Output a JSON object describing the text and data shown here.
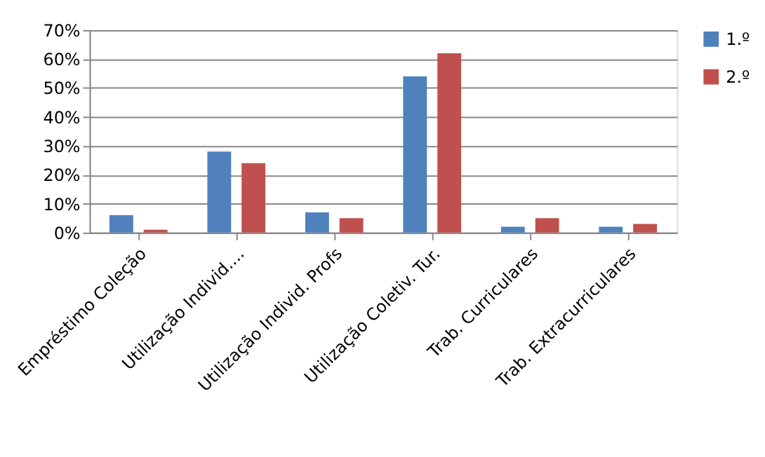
{
  "chart_data": {
    "type": "bar",
    "categories": [
      "Empréstimo Coleção",
      "Utilização Individ....",
      "Utilização Individ. Profs",
      "Utilização Coletiv. Tur.",
      "Trab. Curriculares",
      "Trab. Extracurriculares"
    ],
    "series": [
      {
        "name": "1.º",
        "color": "#4f81bd",
        "values": [
          6,
          28,
          7,
          54,
          2,
          2
        ]
      },
      {
        "name": "2.º",
        "color": "#c0504d",
        "values": [
          1,
          24,
          5,
          62,
          5,
          3
        ]
      }
    ],
    "ylim": [
      0,
      70
    ],
    "yticks": [
      {
        "value": 0,
        "label": "0%"
      },
      {
        "value": 10,
        "label": "10%"
      },
      {
        "value": 20,
        "label": "20%"
      },
      {
        "value": 30,
        "label": "30%"
      },
      {
        "value": 40,
        "label": "40%"
      },
      {
        "value": 50,
        "label": "50%"
      },
      {
        "value": 60,
        "label": "60%"
      },
      {
        "value": 70,
        "label": "70%"
      }
    ],
    "grid": "y",
    "legend": "right"
  }
}
